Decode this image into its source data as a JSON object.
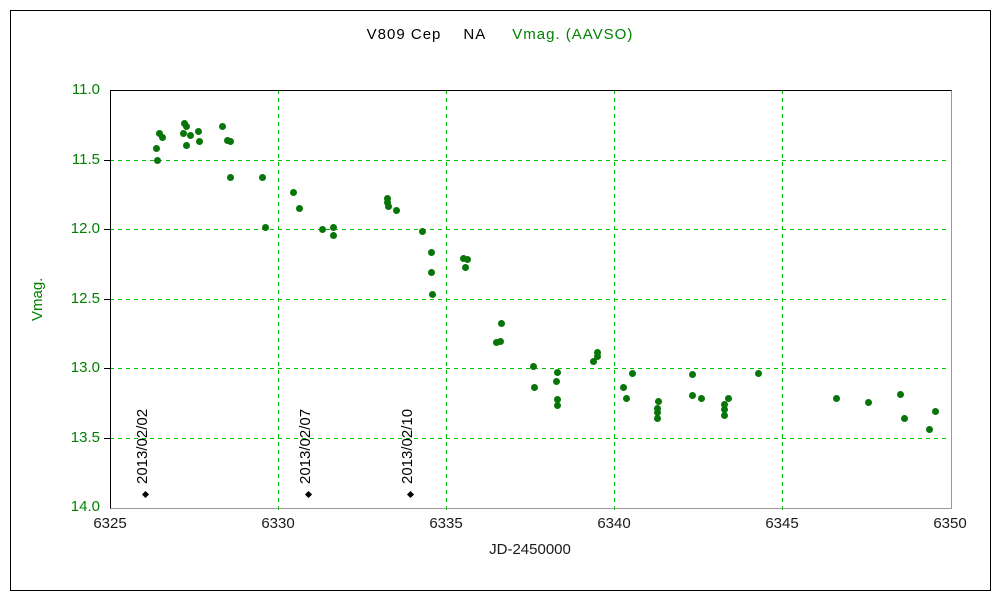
{
  "title": {
    "object": "V809 Cep",
    "code": "NA",
    "band": "Vmag. (AAVSO)"
  },
  "colors": {
    "marker": "#077507",
    "grid": "#00C000",
    "green_text": "#008000",
    "black_text": "#000000",
    "axis_dark": "#000000",
    "axis_gray": "#999999"
  },
  "chart_data": {
    "type": "scatter",
    "title": "V809 Cep  NA  Vmag. (AAVSO)",
    "xlabel": "JD-2450000",
    "ylabel": "Vmag.",
    "xlim": [
      6325,
      6350
    ],
    "ylim": [
      11.0,
      14.0
    ],
    "y_inverted": true,
    "grid": true,
    "x_ticks": [
      {
        "v": 6325,
        "label": "6325"
      },
      {
        "v": 6330,
        "label": "6330"
      },
      {
        "v": 6335,
        "label": "6335"
      },
      {
        "v": 6340,
        "label": "6340"
      },
      {
        "v": 6345,
        "label": "6345"
      },
      {
        "v": 6350,
        "label": "6350"
      }
    ],
    "y_ticks": [
      {
        "v": 11.0,
        "label": "11.0"
      },
      {
        "v": 11.5,
        "label": "11.5"
      },
      {
        "v": 12.0,
        "label": "12.0"
      },
      {
        "v": 12.5,
        "label": "12.5"
      },
      {
        "v": 13.0,
        "label": "13.0"
      },
      {
        "v": 13.5,
        "label": "13.5"
      },
      {
        "v": 14.0,
        "label": "14.0"
      }
    ],
    "x_gridlines": [
      6330,
      6335,
      6340,
      6345
    ],
    "y_gridlines": [
      11.5,
      12.0,
      12.5,
      13.0,
      13.5
    ],
    "series": [
      {
        "name": "Vmag (AAVSO)",
        "color": "#077507",
        "points": [
          [
            6326.37,
            11.42
          ],
          [
            6326.4,
            11.51
          ],
          [
            6326.46,
            11.31
          ],
          [
            6326.55,
            11.34
          ],
          [
            6327.2,
            11.31
          ],
          [
            6327.23,
            11.24
          ],
          [
            6327.29,
            11.26
          ],
          [
            6327.29,
            11.4
          ],
          [
            6327.41,
            11.33
          ],
          [
            6327.62,
            11.3
          ],
          [
            6327.65,
            11.37
          ],
          [
            6328.36,
            11.26
          ],
          [
            6328.51,
            11.36
          ],
          [
            6328.6,
            11.37
          ],
          [
            6328.6,
            11.63
          ],
          [
            6329.55,
            11.63
          ],
          [
            6329.64,
            11.99
          ],
          [
            6330.45,
            11.74
          ],
          [
            6330.65,
            11.85
          ],
          [
            6331.31,
            12.0
          ],
          [
            6331.64,
            11.99
          ],
          [
            6331.64,
            12.05
          ],
          [
            6333.27,
            11.78
          ],
          [
            6333.27,
            11.81
          ],
          [
            6333.3,
            11.84
          ],
          [
            6333.54,
            11.87
          ],
          [
            6334.29,
            12.02
          ],
          [
            6334.58,
            12.17
          ],
          [
            6334.58,
            12.31
          ],
          [
            6334.61,
            12.47
          ],
          [
            6335.51,
            12.21
          ],
          [
            6335.63,
            12.22
          ],
          [
            6335.57,
            12.28
          ],
          [
            6336.49,
            12.82
          ],
          [
            6336.61,
            12.81
          ],
          [
            6336.64,
            12.68
          ],
          [
            6337.59,
            12.99
          ],
          [
            6337.62,
            13.14
          ],
          [
            6338.3,
            13.1
          ],
          [
            6338.33,
            13.03
          ],
          [
            6338.33,
            13.23
          ],
          [
            6338.33,
            13.27
          ],
          [
            6339.38,
            12.95
          ],
          [
            6339.52,
            12.89
          ],
          [
            6339.52,
            12.92
          ],
          [
            6340.27,
            13.14
          ],
          [
            6340.36,
            13.22
          ],
          [
            6340.54,
            13.04
          ],
          [
            6341.28,
            13.29
          ],
          [
            6341.28,
            13.32
          ],
          [
            6341.28,
            13.36
          ],
          [
            6341.31,
            13.24
          ],
          [
            6342.35,
            13.05
          ],
          [
            6342.35,
            13.2
          ],
          [
            6342.59,
            13.22
          ],
          [
            6343.3,
            13.26
          ],
          [
            6343.3,
            13.3
          ],
          [
            6343.3,
            13.34
          ],
          [
            6343.42,
            13.22
          ],
          [
            6344.29,
            13.04
          ],
          [
            6346.61,
            13.22
          ],
          [
            6347.56,
            13.25
          ],
          [
            6348.54,
            13.19
          ],
          [
            6348.66,
            13.36
          ],
          [
            6349.38,
            13.44
          ],
          [
            6349.58,
            13.31
          ]
        ]
      }
    ],
    "annotations": [
      {
        "label": "2013/02/02",
        "x": 6326.05,
        "y": 13.91
      },
      {
        "label": "2013/02/07",
        "x": 6330.9,
        "y": 13.91
      },
      {
        "label": "2013/02/10",
        "x": 6333.93,
        "y": 13.91
      }
    ]
  }
}
